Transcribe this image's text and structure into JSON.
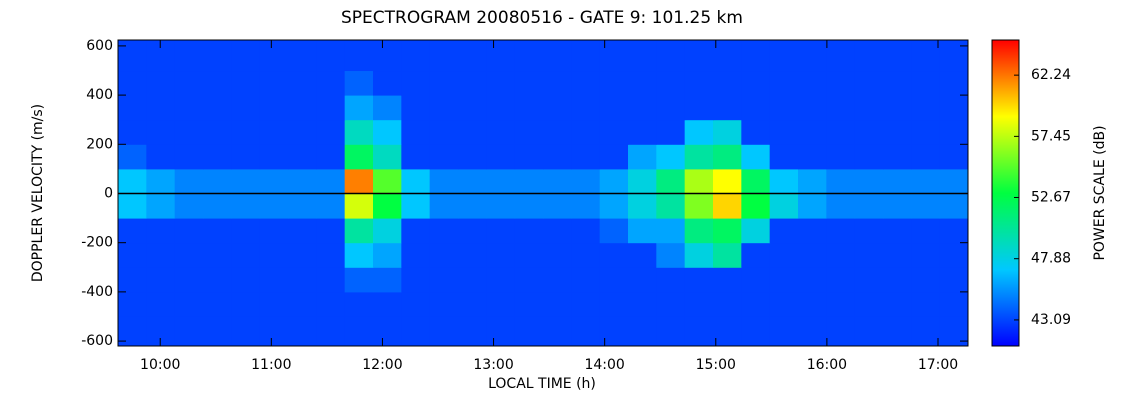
{
  "chart_data": {
    "type": "heatmap",
    "title": "SPECTROGRAM 20080516 - GATE 9: 101.25 km",
    "xlabel": "LOCAL TIME (h)",
    "ylabel": "DOPPLER VELOCITY (m/s)",
    "colorbar_label": "POWER SCALE (dB)",
    "xlim": [
      9.62,
      17.27
    ],
    "ylim": [
      -620,
      624
    ],
    "xticks": [
      {
        "value": 10,
        "label": "10:00"
      },
      {
        "value": 11,
        "label": "11:00"
      },
      {
        "value": 12,
        "label": "12:00"
      },
      {
        "value": 13,
        "label": "13:00"
      },
      {
        "value": 14,
        "label": "14:00"
      },
      {
        "value": 15,
        "label": "15:00"
      },
      {
        "value": 16,
        "label": "16:00"
      },
      {
        "value": 17,
        "label": "17:00"
      }
    ],
    "yticks": [
      -600,
      -400,
      -200,
      0,
      200,
      400,
      600
    ],
    "clim": [
      41.05,
      64.99
    ],
    "cticks": [
      43.09,
      47.88,
      52.67,
      57.45,
      62.24
    ],
    "colormap": [
      "#0000ff",
      "#00c8ff",
      "#00ff40",
      "#ffff00",
      "#ff0000"
    ],
    "x_bins": [
      9.62,
      9.875,
      10.13,
      10.385,
      10.64,
      10.895,
      11.15,
      11.405,
      11.66,
      11.915,
      12.17,
      12.425,
      12.68,
      12.935,
      13.19,
      13.445,
      13.7,
      13.955,
      14.21,
      14.465,
      14.72,
      14.975,
      15.23,
      15.485,
      15.74,
      15.995,
      16.25,
      16.505,
      16.76,
      17.015,
      17.27
    ],
    "y_bins": [
      -620,
      -500,
      -400,
      -300,
      -200,
      -100,
      0,
      100,
      200,
      300,
      400,
      500,
      624
    ],
    "z": [
      [
        43,
        43,
        43,
        43,
        43,
        43,
        43,
        43,
        43,
        43,
        43,
        43,
        43,
        43,
        43,
        43,
        43,
        43,
        43,
        43,
        43,
        43,
        43,
        43,
        43,
        43,
        43,
        43,
        43,
        43
      ],
      [
        43,
        43,
        43,
        43,
        43,
        43,
        43,
        43,
        43,
        43,
        43,
        43,
        43,
        43,
        43,
        43,
        43,
        43,
        43,
        43,
        43,
        43,
        43,
        43,
        43,
        43,
        43,
        43,
        43,
        43
      ],
      [
        43,
        43,
        43,
        43,
        43,
        43,
        43,
        43,
        44,
        44,
        43,
        43,
        43,
        43,
        43,
        43,
        43,
        43,
        43,
        43,
        43,
        43,
        43,
        43,
        43,
        43,
        43,
        43,
        43,
        43
      ],
      [
        43,
        43,
        43,
        43,
        43,
        43,
        43,
        43,
        47,
        46,
        43,
        43,
        43,
        43,
        43,
        43,
        43,
        43,
        43,
        45,
        48,
        50,
        43,
        43,
        43,
        43,
        43,
        43,
        43,
        43
      ],
      [
        43,
        43,
        43,
        43,
        43,
        43,
        43,
        43,
        50,
        48,
        43,
        43,
        43,
        43,
        43,
        43,
        43,
        44,
        46,
        46,
        51,
        52,
        48,
        43,
        43,
        43,
        43,
        43,
        43,
        43
      ],
      [
        47,
        46,
        45,
        45,
        45,
        45,
        45,
        45,
        58,
        53,
        47,
        45,
        45,
        45,
        45,
        45,
        45,
        46,
        48,
        50,
        56,
        60,
        53,
        48,
        46,
        45,
        45,
        45,
        45,
        45
      ],
      [
        47,
        46,
        45,
        45,
        45,
        45,
        45,
        45,
        62,
        55,
        47,
        45,
        45,
        45,
        45,
        45,
        45,
        46,
        48,
        51,
        57,
        59,
        52,
        47,
        46,
        45,
        45,
        45,
        45,
        45
      ],
      [
        44,
        43,
        43,
        43,
        43,
        43,
        43,
        43,
        52,
        49,
        43,
        43,
        43,
        43,
        43,
        43,
        43,
        43,
        46,
        47,
        50,
        51,
        47,
        43,
        43,
        43,
        43,
        43,
        43,
        43
      ],
      [
        43,
        43,
        43,
        43,
        43,
        43,
        43,
        43,
        49,
        47,
        43,
        43,
        43,
        43,
        43,
        43,
        43,
        43,
        43,
        43,
        47,
        48,
        43,
        43,
        43,
        43,
        43,
        43,
        43,
        43
      ],
      [
        43,
        43,
        43,
        43,
        43,
        43,
        43,
        43,
        46,
        45,
        43,
        43,
        43,
        43,
        43,
        43,
        43,
        43,
        43,
        43,
        43,
        43,
        43,
        43,
        43,
        43,
        43,
        43,
        43,
        43
      ],
      [
        43,
        43,
        43,
        43,
        43,
        43,
        43,
        43,
        44,
        43,
        43,
        43,
        43,
        43,
        43,
        43,
        43,
        43,
        43,
        43,
        43,
        43,
        43,
        43,
        43,
        43,
        43,
        43,
        43,
        43
      ],
      [
        43,
        43,
        43,
        43,
        43,
        43,
        43,
        43,
        43,
        43,
        43,
        43,
        43,
        43,
        43,
        43,
        43,
        43,
        43,
        43,
        43,
        43,
        43,
        43,
        43,
        43,
        43,
        43,
        43,
        43
      ]
    ]
  }
}
